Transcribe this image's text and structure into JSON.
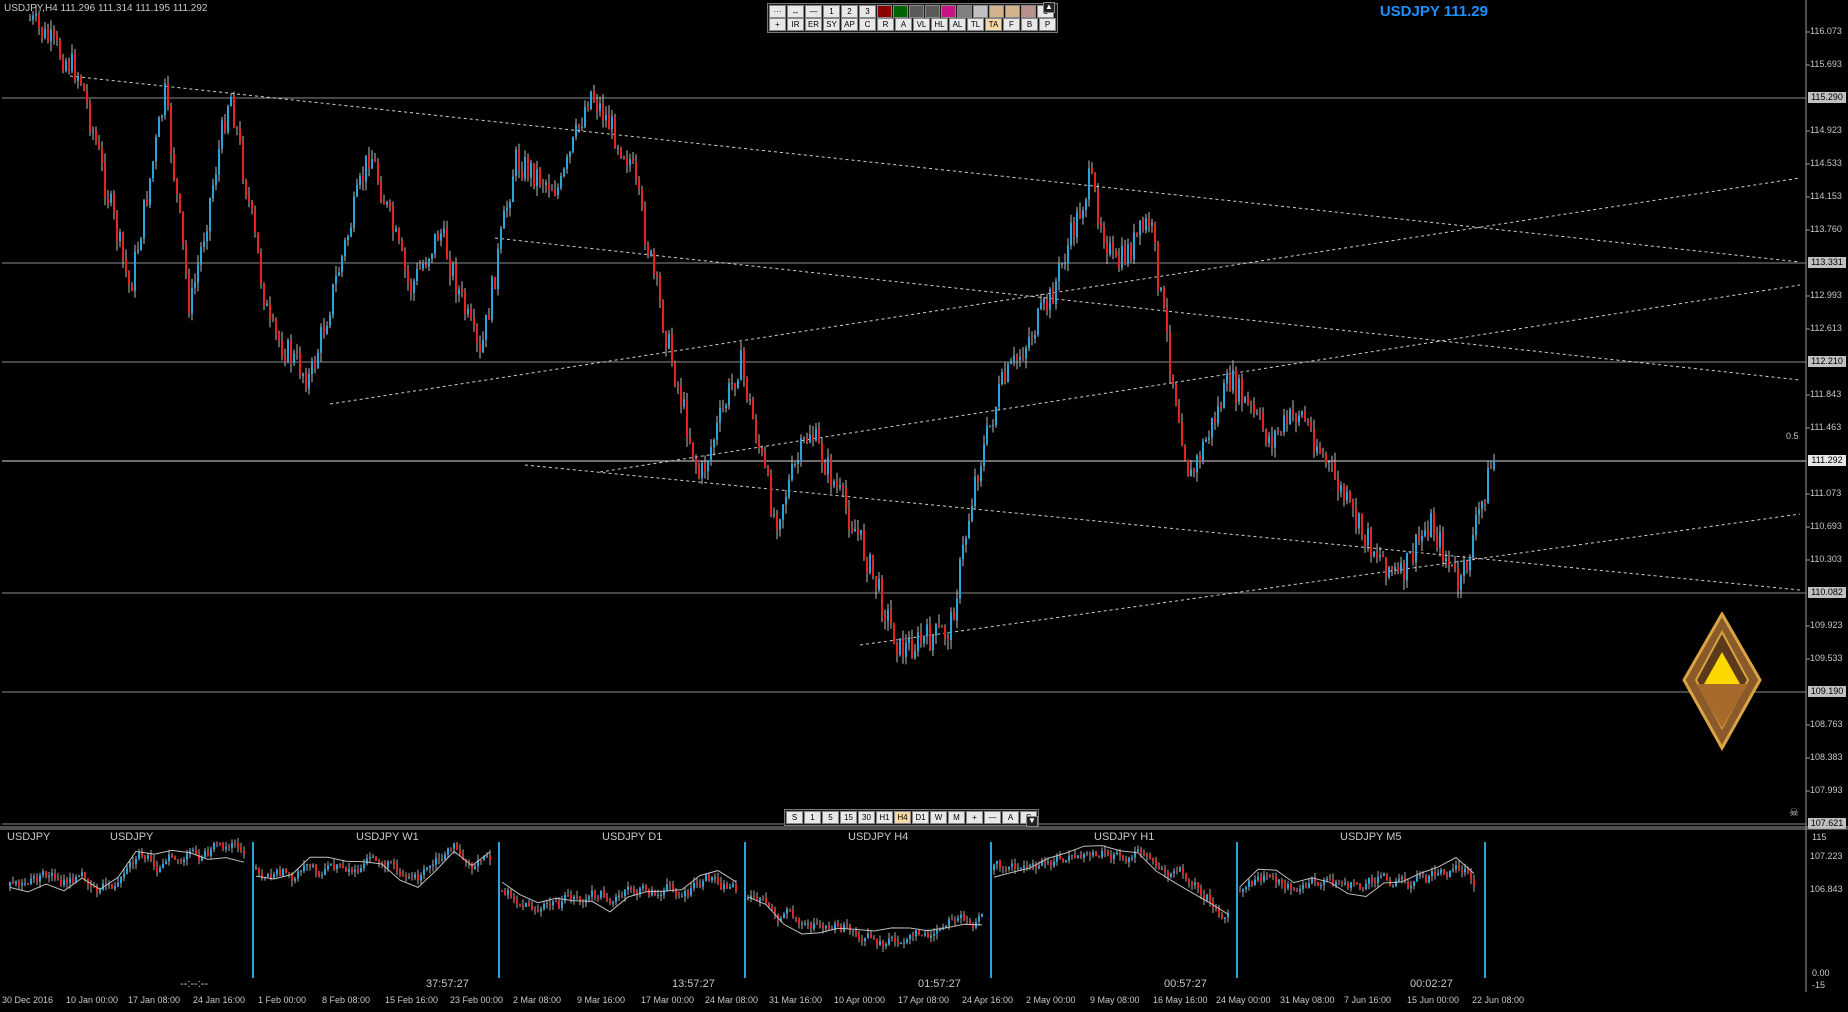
{
  "window": {
    "header": "USDJPY,H4  111.296 111.314 111.195 111.292",
    "symbol_title": "USDJPY 111.29",
    "level_tag": "0.5"
  },
  "price_axis": {
    "labels": [
      "116.073",
      "115.693",
      "115.290",
      "114.923",
      "114.533",
      "114.153",
      "113.760",
      "113.331",
      "112.993",
      "112.613",
      "112.210",
      "111.843",
      "111.463",
      "111.292",
      "111.073",
      "110.693",
      "110.303",
      "110.082",
      "109.923",
      "109.533",
      "109.190",
      "108.763",
      "108.383",
      "107.993",
      "107.621",
      "107.223",
      "106.843"
    ],
    "highlighted": [
      "115.290",
      "113.331",
      "112.210",
      "111.292",
      "110.082",
      "109.190",
      "107.621"
    ],
    "current": "111.292"
  },
  "sub_axis": {
    "labels": [
      "115",
      "0.00",
      "-15"
    ]
  },
  "time_axis": {
    "labels": [
      "30 Dec 2016",
      "10 Jan 00:00",
      "17 Jan 08:00",
      "24 Jan 16:00",
      "1 Feb 00:00",
      "8 Feb 08:00",
      "15 Feb 16:00",
      "23 Feb 00:00",
      "2 Mar 08:00",
      "9 Mar 16:00",
      "17 Mar 00:00",
      "24 Mar 08:00",
      "31 Mar 16:00",
      "10 Apr 00:00",
      "17 Apr 08:00",
      "24 Apr 16:00",
      "2 May 00:00",
      "9 May 08:00",
      "16 May 16:00",
      "24 May 00:00",
      "31 May 08:00",
      "7 Jun 16:00",
      "15 Jun 00:00",
      "22 Jun 08:00"
    ]
  },
  "top_toolbar": {
    "row1": [
      "···",
      "↔",
      "—",
      "1",
      "2",
      "3",
      "",
      "",
      "",
      "",
      "",
      "",
      "",
      "",
      "",
      "",
      "C"
    ],
    "row1_colors": [
      null,
      null,
      null,
      null,
      null,
      null,
      "#8b0000",
      "#006400",
      "#5a5a5a",
      "#5a5a5a",
      "#c71585",
      "#808080",
      "#c0c0c0",
      "#d2b48c",
      "#d2b48c",
      "#bc8f8f",
      null
    ],
    "row2": [
      "+",
      "IR",
      "ER",
      "SY",
      "AP",
      "C",
      "R",
      "A",
      "VL",
      "HL",
      "AL",
      "TL",
      "TA",
      "F",
      "B",
      "P"
    ],
    "scroll_icon": "▲"
  },
  "bottom_toolbar": {
    "buttons": [
      "S",
      "1",
      "5",
      "15",
      "30",
      "H1",
      "H4",
      "D1",
      "W",
      "M",
      "+",
      "—",
      "A",
      "S"
    ],
    "selected": "H4",
    "scroll_icon": "▼"
  },
  "sub_panel": {
    "label": "USDJPY",
    "titles": [
      "USDJPY",
      "USDJPY W1",
      "USDJPY D1",
      "USDJPY H4",
      "USDJPY H1",
      "USDJPY M5"
    ],
    "timers": [
      "--:--:--",
      "37:57:27",
      "13:57:27",
      "01:57:27",
      "00:57:27",
      "00:02:27"
    ]
  },
  "colors": {
    "bull": "#29a3d9",
    "bear": "#e8201e",
    "grid": "#8c8c8c",
    "title": "#1e90ff"
  },
  "icons": {
    "logo": "triangle-emblem-icon",
    "corner": "skull-icon"
  }
}
